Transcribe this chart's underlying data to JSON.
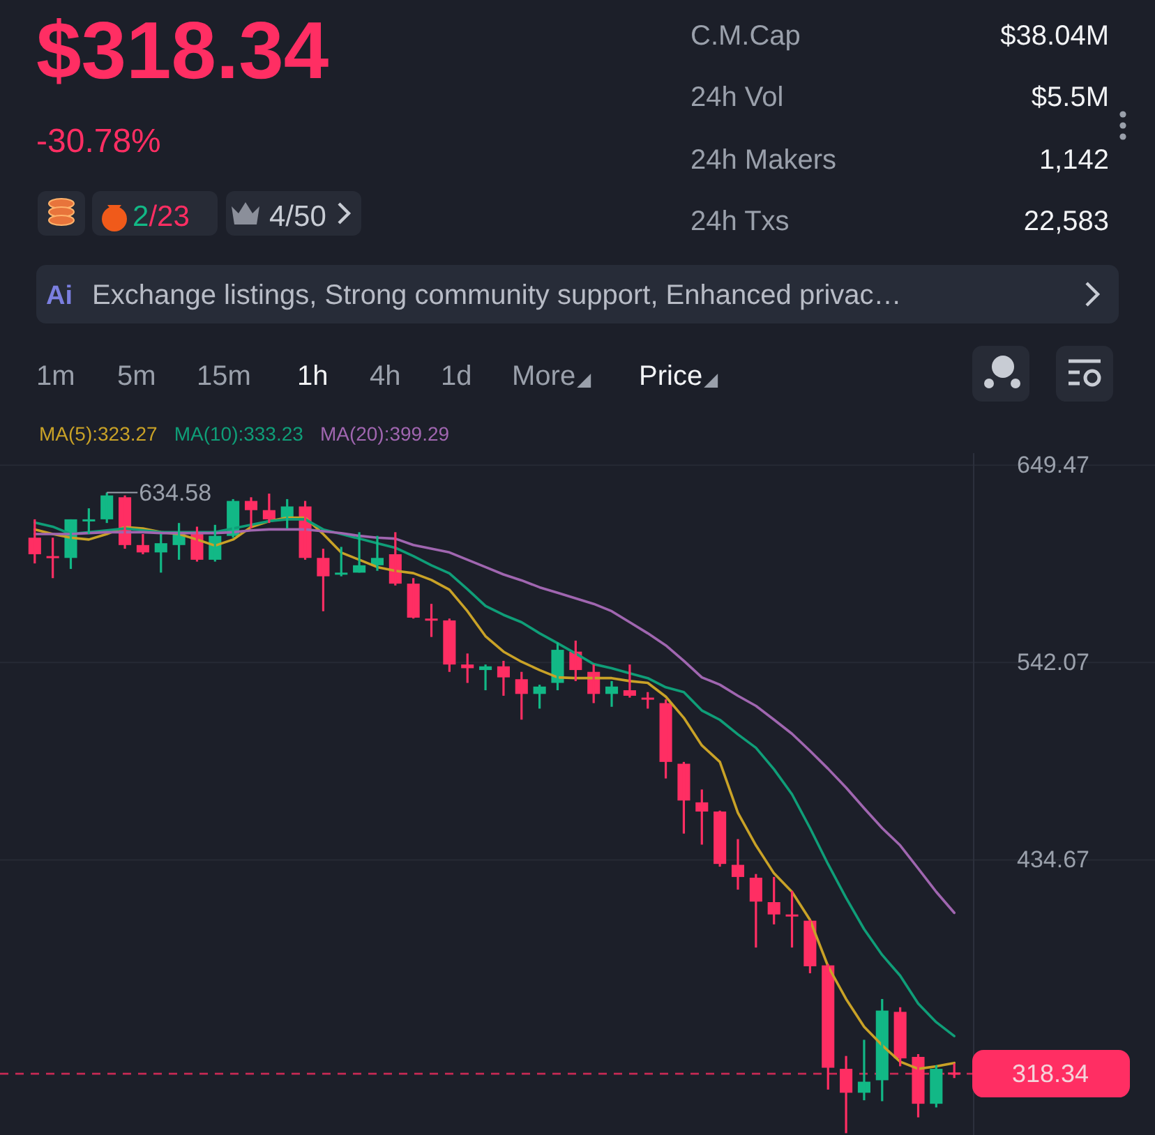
{
  "chart_data": {
    "type": "candlestick",
    "title": "$318.34",
    "subtitle": "-30.78%",
    "categories": [
      null,
      null,
      null,
      null,
      null,
      null,
      null,
      null,
      null,
      null,
      null,
      null,
      null,
      null,
      null,
      null,
      null,
      null,
      null,
      null,
      null,
      null,
      null,
      null,
      null,
      null,
      null,
      null,
      null,
      null,
      null,
      null,
      null,
      null,
      null,
      null,
      null,
      null,
      null,
      null,
      null,
      null,
      null,
      null,
      null,
      null,
      null,
      null,
      null,
      null,
      null,
      null
    ],
    "ohlc": [
      [
        610,
        620,
        596,
        601
      ],
      [
        600,
        610,
        588,
        599
      ],
      [
        599,
        620,
        593,
        620
      ],
      [
        619,
        626,
        612,
        620
      ],
      [
        620,
        634.58,
        618,
        633
      ],
      [
        632,
        633,
        604,
        606
      ],
      [
        606,
        612,
        601,
        602
      ],
      [
        602,
        612,
        591,
        607
      ],
      [
        606,
        618,
        598,
        613
      ],
      [
        613,
        616,
        597,
        598
      ],
      [
        598,
        617,
        597,
        611
      ],
      [
        611,
        631,
        610,
        630
      ],
      [
        630,
        632,
        615,
        625
      ],
      [
        625,
        634,
        618,
        620
      ],
      [
        621,
        631,
        615,
        627
      ],
      [
        627,
        630,
        598,
        599
      ],
      [
        599,
        604,
        570,
        589
      ],
      [
        590,
        605,
        589,
        591
      ],
      [
        591,
        613,
        591,
        595
      ],
      [
        595,
        611,
        592,
        599
      ],
      [
        601,
        613,
        584,
        585
      ],
      [
        585,
        588,
        566,
        566.5
      ],
      [
        566,
        574,
        556,
        565
      ],
      [
        565,
        566,
        537,
        541
      ],
      [
        541,
        547,
        531,
        539
      ],
      [
        538,
        541,
        527,
        540
      ],
      [
        540,
        543,
        524,
        534
      ],
      [
        533,
        537,
        511,
        525
      ],
      [
        525,
        530,
        517,
        529
      ],
      [
        531,
        553,
        527,
        549
      ],
      [
        548,
        554,
        532,
        538
      ],
      [
        537,
        541,
        520,
        525
      ],
      [
        525,
        532,
        518,
        529
      ],
      [
        527,
        541,
        523,
        524
      ],
      [
        523,
        526,
        517,
        522
      ],
      [
        520,
        522,
        479,
        488
      ],
      [
        487,
        488,
        449,
        467
      ],
      [
        466,
        473,
        443,
        461
      ],
      [
        461,
        461.5,
        431,
        432.5
      ],
      [
        432,
        446,
        418.5,
        425.4
      ],
      [
        425,
        427,
        387,
        412
      ],
      [
        411.7,
        425.4,
        399.6,
        405
      ],
      [
        405,
        417.8,
        387,
        404
      ],
      [
        401.6,
        402,
        373,
        376.8
      ],
      [
        377.3,
        378,
        309.7,
        321.6
      ],
      [
        321,
        328,
        286,
        308
      ],
      [
        308,
        336.8,
        303.9,
        314
      ],
      [
        314.8,
        359,
        303.4,
        352.7
      ],
      [
        352,
        354.5,
        322.4,
        326.7
      ],
      [
        327.5,
        329,
        294.6,
        302
      ],
      [
        302,
        323,
        300,
        321
      ],
      [
        319,
        324,
        316,
        318.34
      ]
    ],
    "series": [
      {
        "name": "MA(5):323.27",
        "type": "line",
        "color": "#c9a227",
        "values": [
          614.5,
          612,
          610,
          609,
          612,
          615.8,
          615,
          613,
          612,
          609,
          605.7,
          609,
          615.8,
          619,
          620.9,
          620.9,
          612,
          601.9,
          598,
          594,
          592,
          590.7,
          587,
          581.7,
          570,
          556.4,
          548,
          542.5,
          538,
          534,
          533.6,
          533.6,
          533.6,
          532,
          531,
          523.5,
          512,
          497,
          488,
          460.3,
          442.6,
          427.4,
          417.3,
          402,
          376.8,
          359,
          343.9,
          333.8,
          324.9,
          321,
          322.4,
          324.2
        ]
      },
      {
        "name": "MA(10):333.23",
        "type": "line",
        "color": "#0f9e78",
        "values": [
          618.3,
          616,
          612,
          613,
          614,
          615,
          614,
          613,
          613,
          613,
          613,
          615,
          617,
          619,
          620,
          620,
          614.5,
          612,
          609.5,
          607,
          604.5,
          600,
          595,
          590.6,
          582,
          572.9,
          568,
          564,
          558,
          552.6,
          547,
          541.2,
          539,
          536.2,
          533.6,
          528.6,
          526,
          516,
          510.9,
          503,
          495.7,
          484,
          470.4,
          452,
          432.4,
          414,
          397,
          383,
          371.7,
          356.5,
          346.4,
          338.8
        ]
      },
      {
        "name": "MA(20):399.29",
        "type": "line",
        "color": "#a066b0",
        "values": [
          612,
          612,
          612,
          612.5,
          613,
          613,
          613,
          612.5,
          612.5,
          612.5,
          612.5,
          613,
          614,
          614.5,
          614.5,
          614.5,
          613.5,
          612.5,
          611,
          610,
          609.5,
          606,
          604,
          602,
          598,
          594,
          590,
          586.8,
          583,
          580,
          577,
          574,
          570,
          564,
          558,
          551.4,
          543,
          534,
          530,
          524,
          518.5,
          511,
          503.3,
          494,
          484.3,
          474,
          462.8,
          452,
          442.6,
          430,
          417.3,
          405.9
        ]
      }
    ],
    "ylim": [
      285,
      656
    ],
    "yticks": [
      649.47,
      542.07,
      434.67
    ],
    "grid": true,
    "legend": "top",
    "tick_labels": "y",
    "ref_lines": [
      {
        "axis": "y",
        "value": 318.34,
        "label": "318.34",
        "color": "#ff2e63",
        "line_style": "dashed"
      }
    ],
    "annotations": [
      "634.58",
      "2/23",
      "4/50",
      "C.M.Cap",
      "$38.04M",
      "24h Vol",
      "$5.5M",
      "24h Makers",
      "1,142",
      "24h Txs",
      "22,583",
      "Exchange listings, Strong community support, Enhanced privac…",
      "1m",
      "5m",
      "15m",
      "1h",
      "4h",
      "1d",
      "More",
      "Price",
      "Ai"
    ]
  }
}
